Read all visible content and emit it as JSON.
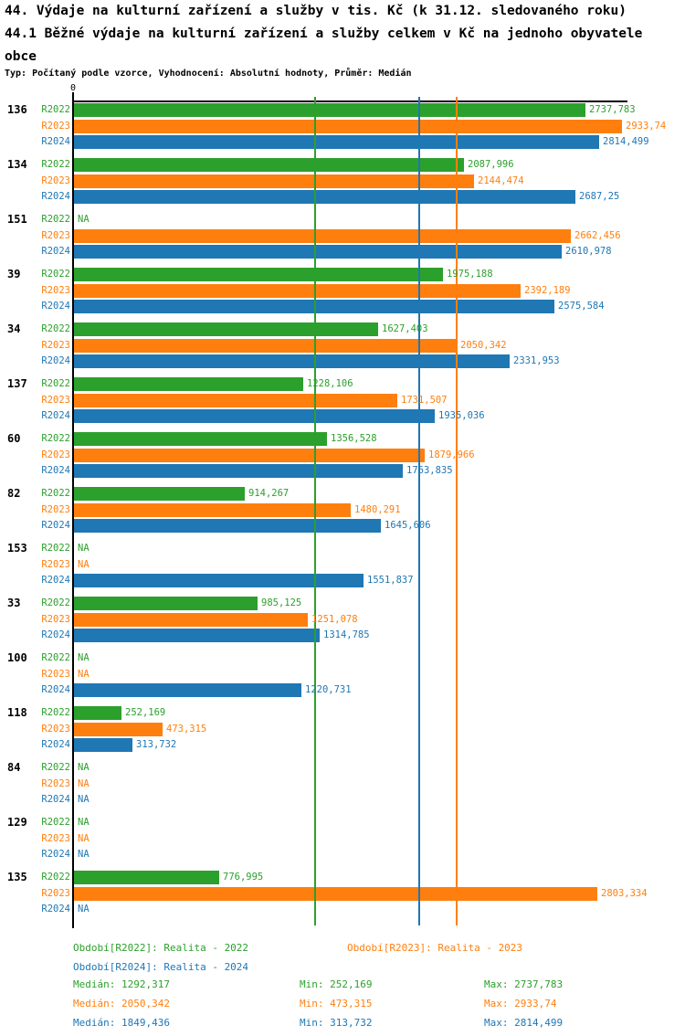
{
  "title_line1": "44. Výdaje na kulturní zařízení a služby v tis. Kč (k 31.12. sledovaného roku)",
  "title_line2": "44.1 Běžné výdaje na kulturní zařízení a služby celkem v Kč na jednoho obyvatele",
  "title_line3": "obce",
  "subtitle": "Typ: Počítaný podle vzorce, Vyhodnocení: Absolutní hodnoty, Průměr: Medián",
  "axis": {
    "zero_label": "0"
  },
  "colors": {
    "r2022": "#2ca02c",
    "r2023": "#ff7f0e",
    "r2024": "#1f77b4",
    "axis": "#000000"
  },
  "chart_data": {
    "type": "bar",
    "orientation": "horizontal",
    "xlim": [
      0,
      2970
    ],
    "na_text": "NA",
    "series_labels": [
      "R2022",
      "R2023",
      "R2024"
    ],
    "series_colors": [
      "#2ca02c",
      "#ff7f0e",
      "#1f77b4"
    ],
    "groups": [
      {
        "id": "136",
        "values": [
          2737.783,
          2933.74,
          2814.499
        ],
        "value_labels": [
          "2737,783",
          "2933,74",
          "2814,499"
        ]
      },
      {
        "id": "134",
        "values": [
          2087.996,
          2144.474,
          2687.25
        ],
        "value_labels": [
          "2087,996",
          "2144,474",
          "2687,25"
        ]
      },
      {
        "id": "151",
        "values": [
          null,
          2662.456,
          2610.978
        ],
        "value_labels": [
          "NA",
          "2662,456",
          "2610,978"
        ]
      },
      {
        "id": "39",
        "values": [
          1975.188,
          2392.189,
          2575.584
        ],
        "value_labels": [
          "1975,188",
          "2392,189",
          "2575,584"
        ]
      },
      {
        "id": "34",
        "values": [
          1627.403,
          2050.342,
          2331.953
        ],
        "value_labels": [
          "1627,403",
          "2050,342",
          "2331,953"
        ]
      },
      {
        "id": "137",
        "values": [
          1228.106,
          1731.507,
          1935.036
        ],
        "value_labels": [
          "1228,106",
          "1731,507",
          "1935,036"
        ]
      },
      {
        "id": "60",
        "values": [
          1356.528,
          1879.966,
          1763.835
        ],
        "value_labels": [
          "1356,528",
          "1879,966",
          "1763,835"
        ]
      },
      {
        "id": "82",
        "values": [
          914.267,
          1480.291,
          1645.606
        ],
        "value_labels": [
          "914,267",
          "1480,291",
          "1645,606"
        ]
      },
      {
        "id": "153",
        "values": [
          null,
          null,
          1551.837
        ],
        "value_labels": [
          "NA",
          "NA",
          "1551,837"
        ]
      },
      {
        "id": "33",
        "values": [
          985.125,
          1251.078,
          1314.785
        ],
        "value_labels": [
          "985,125",
          "1251,078",
          "1314,785"
        ]
      },
      {
        "id": "100",
        "values": [
          null,
          null,
          1220.731
        ],
        "value_labels": [
          "NA",
          "NA",
          "1220,731"
        ]
      },
      {
        "id": "118",
        "values": [
          252.169,
          473.315,
          313.732
        ],
        "value_labels": [
          "252,169",
          "473,315",
          "313,732"
        ]
      },
      {
        "id": "84",
        "values": [
          null,
          null,
          null
        ],
        "value_labels": [
          "NA",
          "NA",
          "NA"
        ]
      },
      {
        "id": "129",
        "values": [
          null,
          null,
          null
        ],
        "value_labels": [
          "NA",
          "NA",
          "NA"
        ]
      },
      {
        "id": "135",
        "values": [
          776.995,
          2803.334,
          null
        ],
        "value_labels": [
          "776,995",
          "2803,334",
          "NA"
        ]
      }
    ],
    "median_lines": [
      {
        "series": "R2022",
        "value": 1292.317,
        "color": "#2ca02c"
      },
      {
        "series": "R2024",
        "value": 1849.436,
        "color": "#1f77b4"
      },
      {
        "series": "R2023",
        "value": 2050.342,
        "color": "#ff7f0e"
      }
    ]
  },
  "legend": {
    "r2022": "Období[R2022]: Realita - 2022",
    "r2023": "Období[R2023]: Realita - 2023",
    "r2024": "Období[R2024]: Realita - 2024"
  },
  "stats": [
    {
      "median": "Medián: 1292,317",
      "min": "Min: 252,169",
      "max": "Max: 2737,783"
    },
    {
      "median": "Medián: 2050,342",
      "min": "Min: 473,315",
      "max": "Max: 2933,74"
    },
    {
      "median": "Medián: 1849,436",
      "min": "Min: 313,732",
      "max": "Max: 2814,499"
    }
  ]
}
